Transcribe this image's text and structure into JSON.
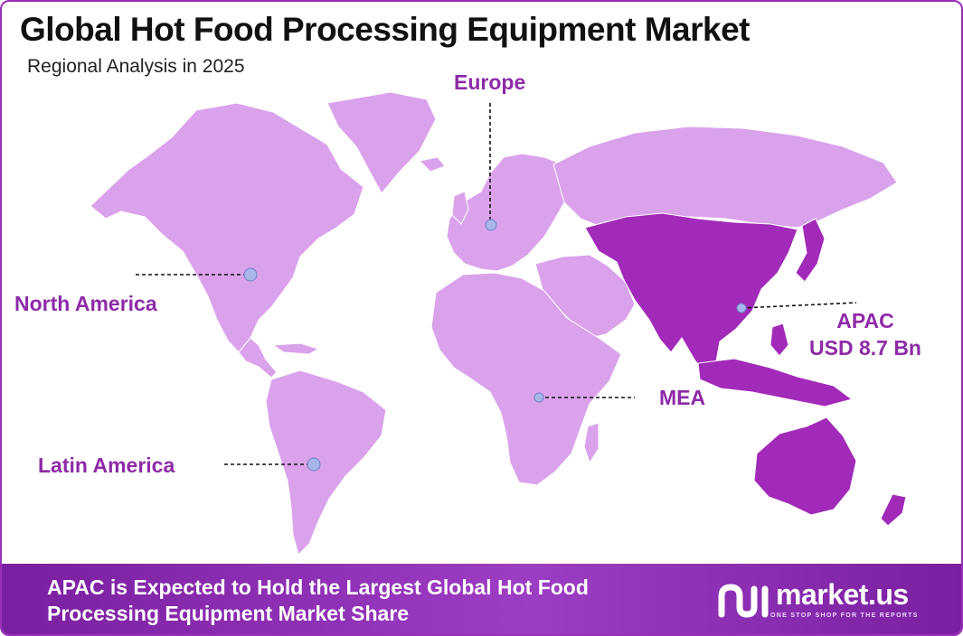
{
  "title": "Global Hot Food Processing Equipment Market",
  "subtitle": "Regional Analysis in 2025",
  "colors": {
    "land": "#dba2ec",
    "highlight": "#a22ab9",
    "label": "#8e2aa8",
    "marker": "#a9b6ea",
    "footer": "#8a2db0"
  },
  "regions": {
    "europe": "Europe",
    "north_america": "North America",
    "latin_america": "Latin America",
    "mea": "MEA",
    "apac": "APAC",
    "apac_value": "USD 8.7 Bn"
  },
  "highlighted_region": "APAC",
  "footer": {
    "line1": "APAC is Expected to Hold the Largest Global Hot Food",
    "line2": "Processing Equipment Market Share"
  },
  "logo": {
    "name": "market.us",
    "tagline": "ONE STOP SHOP FOR THE REPORTS"
  }
}
